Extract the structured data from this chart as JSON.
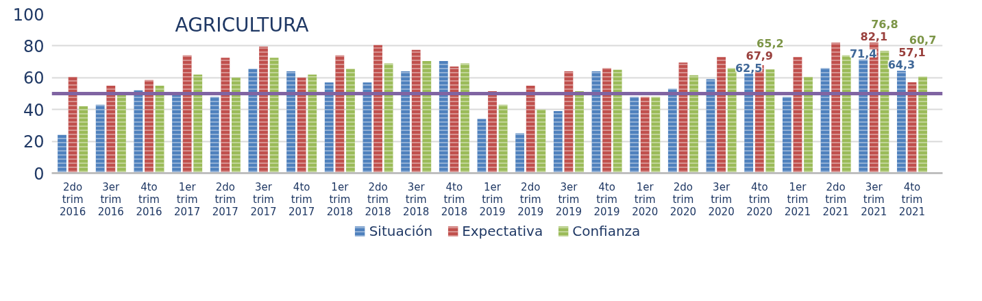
{
  "chart_data": {
    "type": "bar",
    "title": "AGRICULTURA",
    "categories": [
      "2do trim 2016",
      "3er trim 2016",
      "4to trim 2016",
      "1er trim 2017",
      "2do trim 2017",
      "3er trim 2017",
      "4to trim 2017",
      "1er trim 2018",
      "2do trim 2018",
      "3er trim 2018",
      "4to trim 2018",
      "1er trim 2019",
      "2do trim 2019",
      "3er trim 2019",
      "4to trim 2019",
      "1er trim 2020",
      "2do trim 2020",
      "3er trim 2020",
      "4to trim 2020",
      "1er trim 2021",
      "2do trim 2021",
      "3er trim 2021",
      "4to trim 2021"
    ],
    "series": [
      {
        "name": "Situación",
        "color": "#4f81bd",
        "values": [
          24,
          43,
          52,
          49,
          48,
          65.5,
          64,
          57,
          57,
          64,
          70.5,
          34,
          25,
          39,
          64,
          48,
          53,
          59,
          62.5,
          48,
          66,
          71.4,
          64.3
        ],
        "value_labels": [
          null,
          null,
          null,
          null,
          null,
          null,
          null,
          null,
          null,
          null,
          null,
          null,
          null,
          null,
          null,
          null,
          null,
          null,
          "62,5",
          null,
          null,
          "71,4",
          "64,3"
        ]
      },
      {
        "name": "Expectativa",
        "color": "#c0504d",
        "values": [
          60.5,
          55,
          58.5,
          74,
          72.5,
          79.5,
          60,
          74,
          80.5,
          77.5,
          67,
          51.5,
          55,
          64,
          66,
          48,
          69.5,
          73,
          67.9,
          73,
          82,
          82.1,
          57.1
        ],
        "value_labels": [
          null,
          null,
          null,
          null,
          null,
          null,
          null,
          null,
          null,
          null,
          null,
          null,
          null,
          null,
          null,
          null,
          null,
          null,
          "67,9",
          null,
          null,
          "82,1",
          "57,1"
        ]
      },
      {
        "name": "Confianza",
        "color": "#9bbb59",
        "values": [
          42,
          49,
          55,
          62,
          60,
          72.5,
          62,
          65.5,
          69,
          70.5,
          69,
          43,
          40,
          51.5,
          65,
          48,
          61.5,
          66,
          65.2,
          60.5,
          74,
          76.8,
          60.7
        ],
        "value_labels": [
          null,
          null,
          null,
          null,
          null,
          null,
          null,
          null,
          null,
          null,
          null,
          null,
          null,
          null,
          null,
          null,
          null,
          null,
          "65,2",
          null,
          null,
          "76,8",
          "60,7"
        ]
      }
    ],
    "ylim": [
      0,
      100
    ],
    "yticks": [
      0,
      20,
      40,
      60,
      80,
      100
    ],
    "grid": "y",
    "legend": "bottom",
    "ref_lines": [
      {
        "axis": "y",
        "value": 50,
        "color": "#8064a2"
      }
    ]
  }
}
